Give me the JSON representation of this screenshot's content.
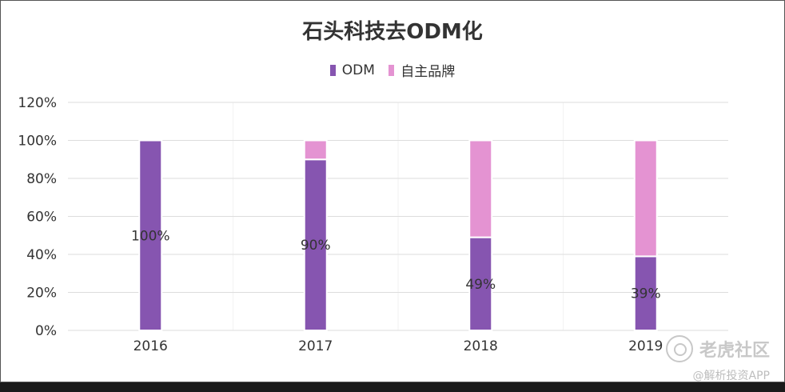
{
  "chart_data": {
    "type": "bar",
    "stacked": true,
    "title": "石头科技去ODM化",
    "categories": [
      "2016",
      "2017",
      "2018",
      "2019"
    ],
    "series": [
      {
        "name": "ODM",
        "values": [
          100,
          90,
          49,
          39
        ],
        "color": "#8655B0",
        "labels": [
          "100%",
          "90%",
          "49%",
          "39%"
        ]
      },
      {
        "name": "自主品牌",
        "values": [
          0,
          10,
          51,
          61
        ],
        "color": "#E493D2"
      }
    ],
    "ylim": [
      0,
      120
    ],
    "yticks": [
      "0%",
      "20%",
      "40%",
      "60%",
      "80%",
      "100%",
      "120%"
    ],
    "ytick_values": [
      0,
      20,
      40,
      60,
      80,
      100,
      120
    ],
    "grid": true,
    "legend": "top-center"
  },
  "watermark": {
    "brand": "老虎社区",
    "sub": "@解析投资APP"
  }
}
